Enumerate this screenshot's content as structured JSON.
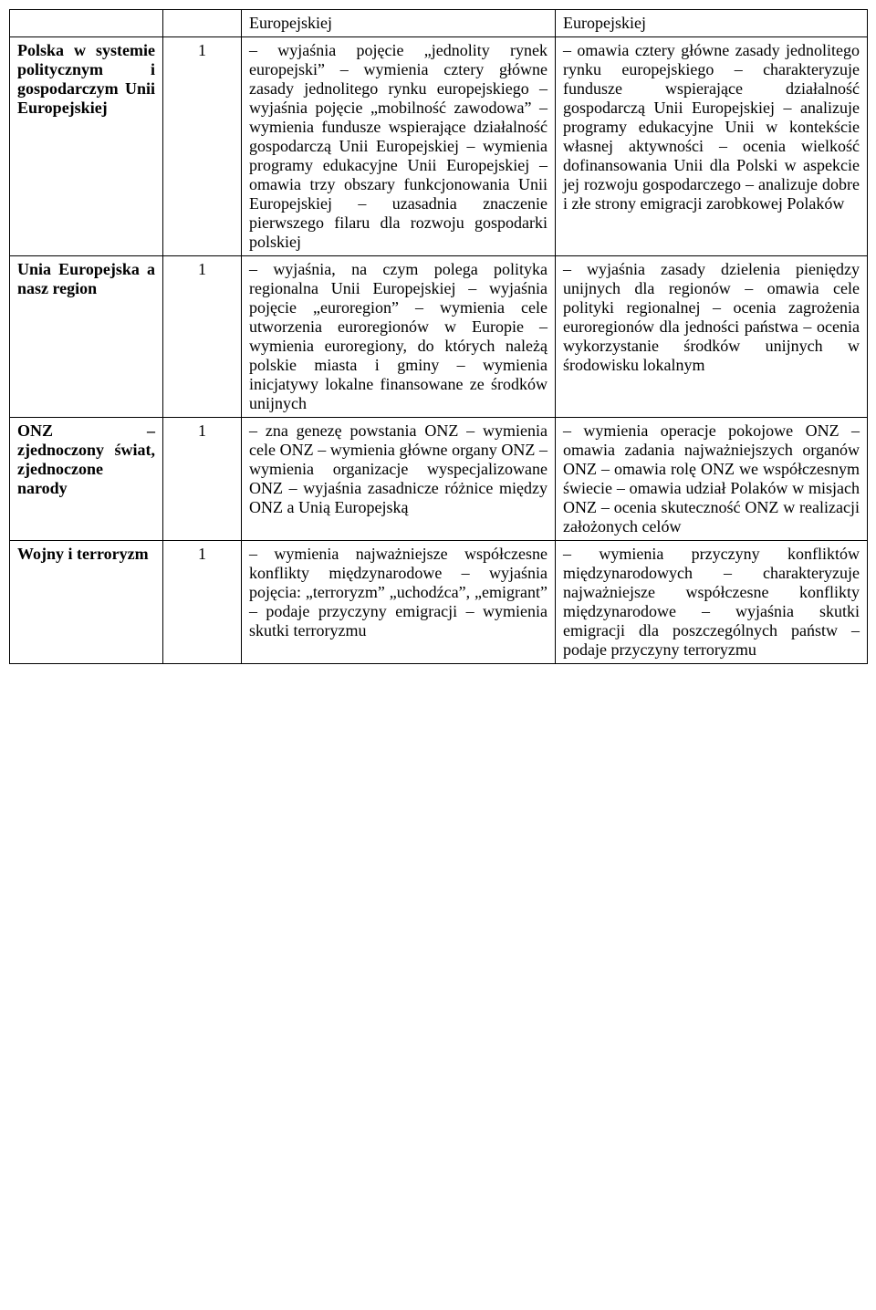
{
  "rows": [
    {
      "topic": "",
      "hours": "",
      "col3": "Europejskiej",
      "col4": "Europejskiej",
      "topicBold": false
    },
    {
      "topic": "Polska w systemie politycznym i gospodarczym Unii Europejskiej",
      "hours": "1",
      "col3": "– wyjaśnia pojęcie „jednolity rynek europejski”\n– wymienia cztery główne zasady jednolitego rynku europejskiego\n– wyjaśnia pojęcie „mobilność zawodowa”\n– wymienia fundusze wspierające działalność gospodarczą Unii Europejskiej\n– wymienia programy edukacyjne Unii Europejskiej\n– omawia trzy obszary funkcjonowania Unii Europejskiej\n– uzasadnia znaczenie pierwszego filaru dla rozwoju gospodarki polskiej",
      "col4": "– omawia cztery główne zasady jednolitego rynku europejskiego\n– charakteryzuje fundusze wspierające działalność gospodarczą Unii Europejskiej\n– analizuje programy edukacyjne Unii w kontekście własnej aktywności\n– ocenia wielkość dofinansowania Unii dla Polski w aspekcie jej rozwoju gospodarczego\n– analizuje dobre i złe strony emigracji zarobkowej Polaków",
      "topicBold": true
    },
    {
      "topic": "Unia Europejska a nasz region",
      "hours": "1",
      "col3": "– wyjaśnia, na czym polega polityka regionalna Unii Europejskiej\n– wyjaśnia pojęcie „euroregion”\n– wymienia cele utworzenia euroregionów w Europie\n– wymienia euroregiony, do których należą polskie miasta i gminy\n– wymienia inicjatywy lokalne finansowane ze środków unijnych",
      "col4": "– wyjaśnia zasady dzielenia pieniędzy unijnych dla regionów\n– omawia cele polityki regionalnej\n– ocenia zagrożenia euroregionów dla jedności państwa\n– ocenia wykorzystanie środków unijnych w środowisku lokalnym",
      "topicBold": true
    },
    {
      "topic": "ONZ – zjednoczony świat, zjednoczone narody",
      "hours": "1",
      "col3": "– zna genezę powstania ONZ\n– wymienia cele ONZ\n– wymienia główne organy ONZ\n– wymienia organizacje wyspecjalizowane ONZ\n– wyjaśnia zasadnicze różnice między ONZ a Unią Europejską",
      "col4": "– wymienia operacje pokojowe ONZ\n– omawia zadania najważniejszych organów ONZ\n– omawia rolę ONZ we współczesnym świecie\n– omawia udział Polaków w misjach ONZ\n– ocenia skuteczność ONZ w realizacji założonych celów",
      "topicBold": true
    },
    {
      "topic": "Wojny i terroryzm",
      "hours": "1",
      "col3": "– wymienia najważniejsze współczesne konflikty międzynarodowe\n– wyjaśnia pojęcia: „terroryzm” „uchodźca”, „emigrant”\n– podaje przyczyny emigracji\n– wymienia skutki terroryzmu",
      "col4": "– wymienia przyczyny konfliktów międzynarodowych\n– charakteryzuje najważniejsze współczesne konflikty międzynarodowe\n– wyjaśnia skutki emigracji dla poszczególnych państw\n– podaje przyczyny terroryzmu",
      "topicBold": true
    }
  ]
}
